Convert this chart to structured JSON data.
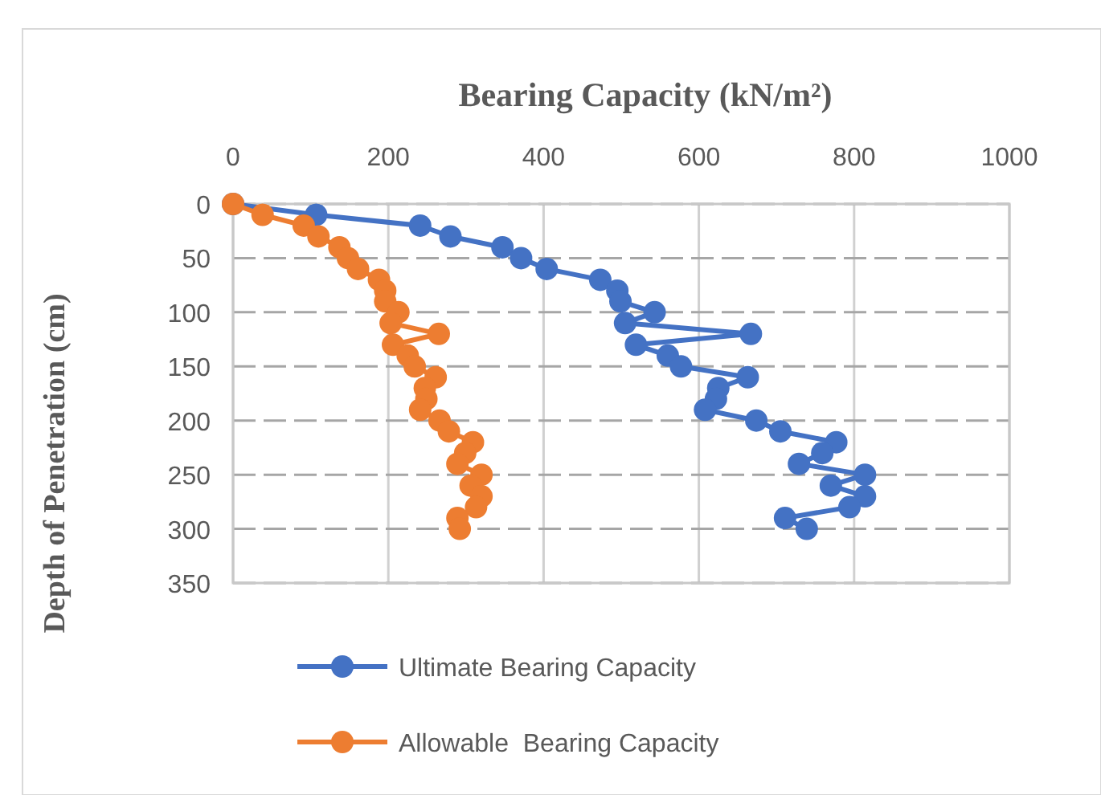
{
  "chart_data": {
    "type": "line",
    "title": "Bearing Capacity (kN/m²)",
    "ylabel": "Depth of Penetration (cm)",
    "xlim": [
      0,
      1000
    ],
    "xticks": [
      0,
      200,
      400,
      600,
      800,
      1000
    ],
    "ylim": [
      350,
      0
    ],
    "yticks": [
      0,
      50,
      100,
      150,
      200,
      250,
      300,
      350
    ],
    "grid": true,
    "legend": "bottom",
    "marker": "circle",
    "line_style": "solid",
    "series": [
      {
        "name": "Ultimate Bearing Capacity",
        "color": "#4472c4",
        "x": [
          0,
          107,
          241,
          280,
          347,
          371,
          404,
          473,
          495,
          499,
          543,
          505,
          667,
          519,
          560,
          577,
          663,
          625,
          622,
          608,
          674,
          705,
          777,
          759,
          729,
          814,
          770,
          814,
          794,
          711,
          739
        ],
        "values": [
          0,
          10,
          20,
          30,
          40,
          50,
          60,
          70,
          80,
          90,
          100,
          110,
          120,
          130,
          140,
          150,
          160,
          170,
          180,
          190,
          200,
          210,
          220,
          230,
          240,
          250,
          260,
          270,
          280,
          290,
          300
        ]
      },
      {
        "name": "Allowable  Bearing Capacity",
        "color": "#ed7d31",
        "x": [
          0,
          38,
          91,
          110,
          137,
          148,
          161,
          188,
          196,
          196,
          213,
          203,
          265,
          206,
          225,
          234,
          261,
          247,
          249,
          241,
          266,
          278,
          309,
          299,
          289,
          320,
          306,
          320,
          313,
          289,
          292
        ],
        "values": [
          0,
          10,
          20,
          30,
          40,
          50,
          60,
          70,
          80,
          90,
          100,
          110,
          120,
          130,
          140,
          150,
          160,
          170,
          180,
          190,
          200,
          210,
          220,
          230,
          240,
          250,
          260,
          270,
          280,
          290,
          300
        ]
      }
    ]
  }
}
